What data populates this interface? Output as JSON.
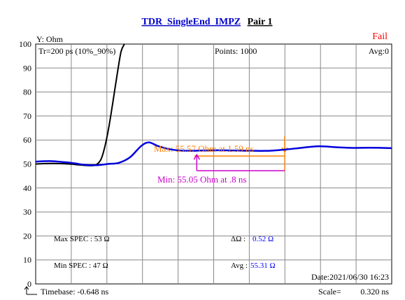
{
  "title": {
    "left": "TDR_SingleEnd_IMPZ",
    "right": "Pair 1"
  },
  "y_unit_label": "Y: Ohm",
  "status": "Fail",
  "header": {
    "rise_time": "Tr=200  ps (10%_90%)",
    "points": "Points: 1000",
    "avg": "Avg:0"
  },
  "markers": {
    "max": "Max: 55.57  Ohm at 1.59  ns",
    "min": "Min: 55.05  Ohm at .8  ns"
  },
  "spec": {
    "max_label": "Max SPEC : 53 Ω",
    "min_label": "Min  SPEC : 47  Ω",
    "delta_label": "ΔΩ :",
    "delta_value": "0.52 Ω",
    "avg_label": "Avg :",
    "avg_value": "55.31 Ω"
  },
  "footer": {
    "date": "Date:2021/06/30 16:23",
    "timebase": "Timebase: -0.648  ns",
    "scale_label": "Scale=",
    "scale_value": "0.320 ns"
  },
  "colors": {
    "impedance": "#0000dd",
    "step": "#000000",
    "max_marker": "#ff8000",
    "min_marker": "#cc00cc",
    "status": "#ff0000",
    "spec_value": "#0000ff",
    "title": "#0000cc",
    "grid": "#888888"
  },
  "chart_data": {
    "type": "line",
    "ylim": [
      0,
      100
    ],
    "yticks": [
      "0",
      "10",
      "20",
      "30",
      "40",
      "50",
      "60",
      "70",
      "80",
      "90",
      "100"
    ],
    "xlim": [
      -0.648,
      2.552
    ],
    "grid": true,
    "series": [
      {
        "role": "impedance",
        "x": [
          -0.648,
          -0.52,
          -0.4,
          -0.3,
          -0.2,
          -0.1,
          0.0,
          0.1,
          0.2,
          0.3,
          0.37,
          0.45,
          0.55,
          0.65,
          0.73,
          0.85,
          1.0,
          1.15,
          1.3,
          1.45,
          1.59,
          1.75,
          1.9,
          2.05,
          2.2,
          2.35,
          2.552
        ],
        "y": [
          51.0,
          51.2,
          50.8,
          50.3,
          49.6,
          49.5,
          50.0,
          50.5,
          52.8,
          57.5,
          59.0,
          57.5,
          56.2,
          55.6,
          55.5,
          55.6,
          55.7,
          55.6,
          55.5,
          55.5,
          56.0,
          56.8,
          57.4,
          57.0,
          56.7,
          56.8,
          56.6
        ]
      },
      {
        "role": "step",
        "x": [
          -0.648,
          -0.5,
          -0.35,
          -0.25,
          -0.15,
          -0.1,
          -0.06,
          -0.03,
          0.0,
          0.03,
          0.06,
          0.09,
          0.12,
          0.15
        ],
        "y": [
          50.0,
          50.2,
          50.0,
          49.6,
          49.3,
          49.8,
          52.0,
          56.5,
          63.0,
          71.0,
          80.0,
          89.0,
          97.0,
          100.0
        ]
      }
    ],
    "markers": {
      "max": {
        "value": 55.57,
        "x_end": 1.59,
        "line_y": 53.3
      },
      "min": {
        "value": 55.05,
        "x_start": 0.8,
        "line_y": 47.2
      }
    }
  }
}
